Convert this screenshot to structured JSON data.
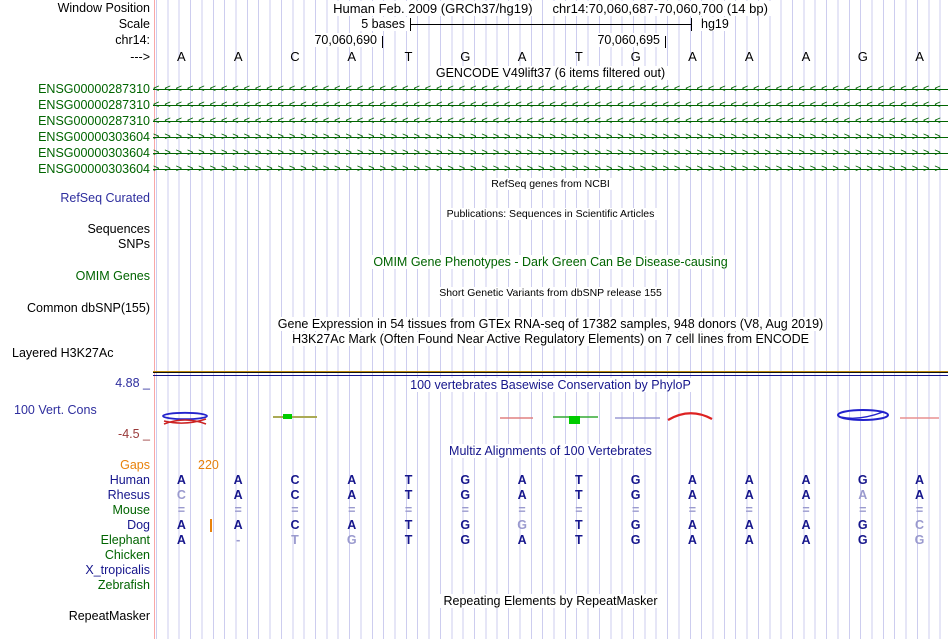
{
  "colors": {
    "track_green": "#006400",
    "navy": "#16168C",
    "label_blue": "#2E2E9E",
    "orange": "#E8820C",
    "dim_base": "#9A9ACE",
    "grid_line": "#CDCDEF",
    "separator_pink": "#F9A7A7",
    "conservation_min_red": "#993939",
    "h3k27ac_yellow": "#B8860B"
  },
  "header": {
    "window_position_label": "Window Position",
    "assembly_text": "Human Feb. 2009 (GRCh37/hg19)",
    "position_text": "chr14:70,060,687-70,060,700 (14 bp)",
    "scale_label": "Scale",
    "scale_value": "5 bases",
    "genome_tag": "hg19",
    "chrom_label": "chr14:",
    "coord_left": "70,060,690",
    "coord_right": "70,060,695",
    "strand_arrow": "--->",
    "sequence": [
      "A",
      "A",
      "C",
      "A",
      "T",
      "G",
      "A",
      "T",
      "G",
      "A",
      "A",
      "A",
      "G",
      "A"
    ]
  },
  "gencode": {
    "title": "GENCODE V49lift37 (6 items filtered out)",
    "genes": [
      {
        "label": "ENSG00000287310",
        "strand": "<"
      },
      {
        "label": "ENSG00000287310",
        "strand": "<"
      },
      {
        "label": "ENSG00000287310",
        "strand": "<"
      },
      {
        "label": "ENSG00000303604",
        "strand": ">"
      },
      {
        "label": "ENSG00000303604",
        "strand": ">"
      },
      {
        "label": "ENSG00000303604",
        "strand": ">"
      }
    ]
  },
  "notes": {
    "refseq_center": "RefSeq genes from NCBI",
    "refseq_label": "RefSeq Curated",
    "publications_center": "Publications: Sequences in Scientific Articles",
    "sequences_label": "Sequences",
    "snps_label": "SNPs",
    "omim_center": "OMIM Gene Phenotypes - Dark Green Can Be Disease-causing",
    "omim_label": "OMIM Genes",
    "dbsnp_center": "Short Genetic Variants from dbSNP release 155",
    "dbsnp_label": "Common dbSNP(155)",
    "gtex_center": "Gene Expression in 54 tissues from GTEx RNA-seq of 17382 samples, 948 donors (V8, Aug 2019)",
    "h3k27ac_center": "H3K27Ac Mark (Often Found Near Active Regulatory Elements) on 7 cell lines from ENCODE",
    "h3k27ac_label": "Layered H3K27Ac"
  },
  "conservation": {
    "title": "100 vertebrates Basewise Conservation by PhyloP",
    "label": "100 Vert. Cons",
    "max_label": "4.88 _",
    "min_label": "-4.5 _"
  },
  "multiz": {
    "title": "Multiz Alignments of 100 Vertebrates",
    "rows": [
      {
        "label": "Gaps",
        "color": "orange",
        "cells": [],
        "note": "220"
      },
      {
        "label": "Human",
        "color": "navy",
        "cells": [
          "A",
          "A",
          "C",
          "A",
          "T",
          "G",
          "A",
          "T",
          "G",
          "A",
          "A",
          "A",
          "G",
          "A"
        ]
      },
      {
        "label": "Rhesus",
        "color": "navy",
        "cells": [
          {
            "c": "C",
            "dim": true
          },
          "A",
          "C",
          "A",
          "T",
          "G",
          "A",
          "T",
          "G",
          "A",
          "A",
          "A",
          {
            "c": "A",
            "dim": true
          },
          "A"
        ]
      },
      {
        "label": "Mouse",
        "color": "green",
        "cells": [
          {
            "c": "=",
            "dim": true
          },
          {
            "c": "=",
            "dim": true
          },
          {
            "c": "=",
            "dim": true
          },
          {
            "c": "=",
            "dim": true
          },
          {
            "c": "=",
            "dim": true
          },
          {
            "c": "=",
            "dim": true
          },
          {
            "c": "=",
            "dim": true
          },
          {
            "c": "=",
            "dim": true
          },
          {
            "c": "=",
            "dim": true
          },
          {
            "c": "=",
            "dim": true
          },
          {
            "c": "=",
            "dim": true
          },
          {
            "c": "=",
            "dim": true
          },
          {
            "c": "=",
            "dim": true
          },
          {
            "c": "=",
            "dim": true
          }
        ]
      },
      {
        "label": "Dog",
        "color": "navy",
        "tick": true,
        "cells": [
          "A",
          "A",
          "C",
          "A",
          "T",
          "G",
          {
            "c": "G",
            "dim": true
          },
          "T",
          "G",
          "A",
          "A",
          "A",
          "G",
          {
            "c": "C",
            "dim": true
          }
        ]
      },
      {
        "label": "Elephant",
        "color": "green",
        "cells": [
          "A",
          {
            "c": "-",
            "dim": true
          },
          {
            "c": "T",
            "dim": true
          },
          {
            "c": "G",
            "dim": true
          },
          "T",
          "G",
          "A",
          "T",
          "G",
          "A",
          "A",
          "A",
          "G",
          {
            "c": "G",
            "dim": true
          }
        ]
      },
      {
        "label": "Chicken",
        "color": "green",
        "cells": []
      },
      {
        "label": "X_tropicalis",
        "color": "navy",
        "cells": []
      },
      {
        "label": "Zebrafish",
        "color": "green",
        "cells": []
      }
    ]
  },
  "repeats": {
    "center": "Repeating Elements by RepeatMasker",
    "label": "RepeatMasker"
  }
}
